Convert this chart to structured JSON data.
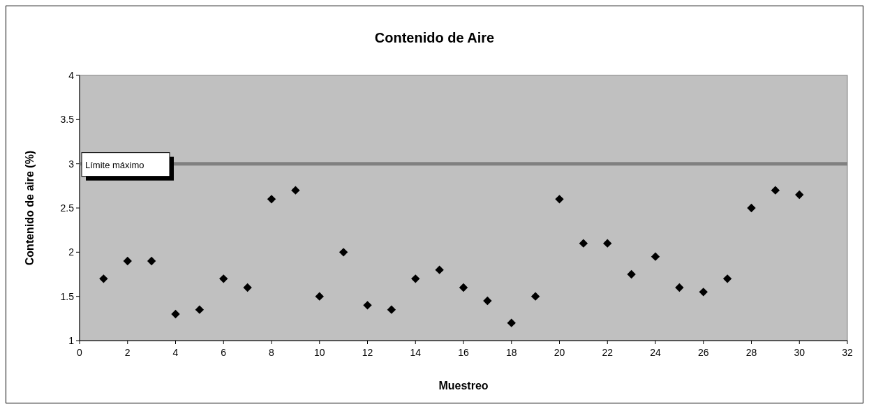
{
  "chart_data": {
    "type": "scatter",
    "title": "Contenido de Aire",
    "xlabel": "Muestreo",
    "ylabel": "Contenido de aire (%)",
    "x": [
      1,
      2,
      3,
      4,
      5,
      6,
      7,
      8,
      9,
      10,
      11,
      12,
      13,
      14,
      15,
      16,
      17,
      18,
      19,
      20,
      21,
      22,
      23,
      24,
      25,
      26,
      27,
      28,
      29,
      30
    ],
    "series": [
      {
        "color": "#000000",
        "values": [
          1.7,
          1.9,
          1.9,
          1.3,
          1.35,
          1.7,
          1.6,
          2.6,
          2.7,
          1.5,
          2,
          1.4,
          1.35,
          1.7,
          1.8,
          1.6,
          1.45,
          1.2,
          1.5,
          2.6,
          2.1,
          2.1,
          1.75,
          1.95,
          1.6,
          1.55,
          1.7,
          2.5,
          2.7,
          2.65
        ]
      }
    ],
    "xlim": [
      0,
      32
    ],
    "xticks": [
      0,
      2,
      4,
      6,
      8,
      10,
      12,
      14,
      16,
      18,
      20,
      22,
      24,
      26,
      28,
      30,
      32
    ],
    "ylim": [
      1,
      4
    ],
    "yticks": [
      1,
      1.5,
      2,
      2.5,
      3,
      3.5,
      4
    ],
    "ref_lines": [
      {
        "axis": "y",
        "value": 3,
        "label": "Límite máximo",
        "color": "#808080"
      }
    ],
    "grid": false,
    "marker": "diamond"
  }
}
